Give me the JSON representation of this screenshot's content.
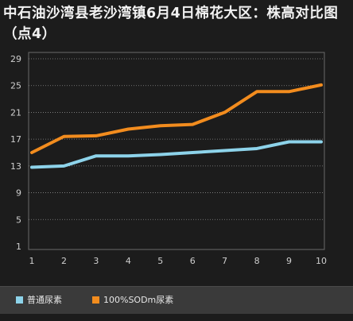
{
  "chart_data": {
    "type": "line",
    "title": "中石油沙湾县老沙湾镇6月4日棉花大区：株高对比图（点4）",
    "x": [
      1,
      2,
      3,
      4,
      5,
      6,
      7,
      8,
      9,
      10
    ],
    "x_tick_labels": [
      "1",
      "2",
      "3",
      "4",
      "5",
      "6",
      "7",
      "8",
      "9",
      "10"
    ],
    "y_ticks": [
      1,
      5,
      9,
      13,
      17,
      21,
      25,
      29
    ],
    "y_tick_labels": [
      "1",
      "5",
      "9",
      "13",
      "17",
      "21",
      "25",
      "29"
    ],
    "ylim": [
      1,
      29
    ],
    "grid": true,
    "legend_position": "bottom",
    "series": [
      {
        "name": "普通尿素",
        "color": "#8dd3ea",
        "values": [
          12.8,
          13.0,
          14.5,
          14.5,
          14.7,
          15.0,
          15.3,
          15.6,
          16.6,
          16.6
        ]
      },
      {
        "name": "100%SODm尿素",
        "color": "#f28c1e",
        "values": [
          15.0,
          17.4,
          17.5,
          18.5,
          19.0,
          19.2,
          21.0,
          24.1,
          24.1,
          25.1
        ]
      }
    ]
  }
}
